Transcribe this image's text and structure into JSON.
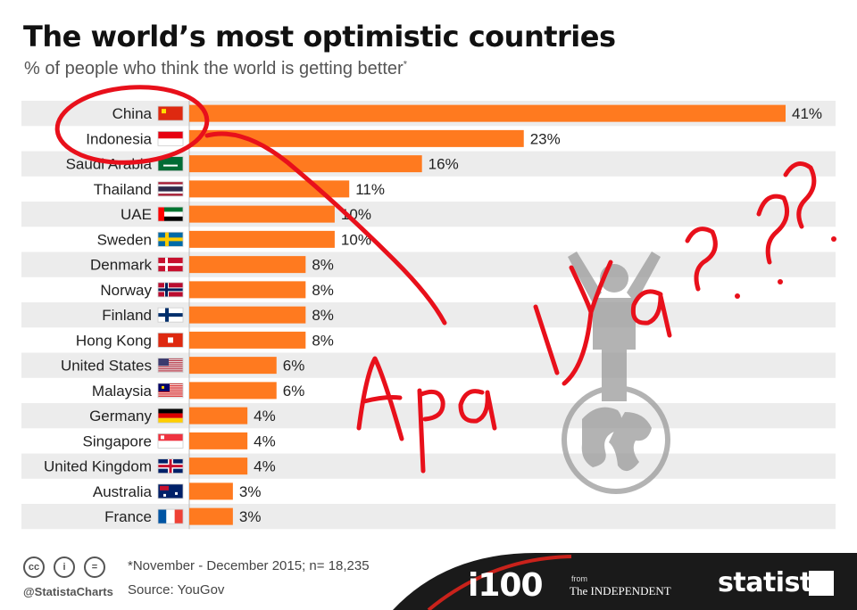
{
  "header": {
    "title": "The world’s most optimistic countries",
    "subtitle": "% of people who think the world is getting better",
    "subtitle_mark": "*"
  },
  "chart_data": {
    "type": "bar",
    "orientation": "horizontal",
    "categories": [
      "China",
      "Indonesia",
      "Saudi Arabia",
      "Thailand",
      "UAE",
      "Sweden",
      "Denmark",
      "Norway",
      "Finland",
      "Hong Kong",
      "United States",
      "Malaysia",
      "Germany",
      "Singapore",
      "United Kingdom",
      "Australia",
      "France"
    ],
    "values": [
      41,
      23,
      16,
      11,
      10,
      10,
      8,
      8,
      8,
      8,
      6,
      6,
      4,
      4,
      4,
      3,
      3
    ],
    "value_labels": [
      "41%",
      "23%",
      "16%",
      "11%",
      "10%",
      "10%",
      "8%",
      "8%",
      "8%",
      "8%",
      "6%",
      "6%",
      "4%",
      "4%",
      "4%",
      "3%",
      "3%"
    ],
    "title": "The world’s most optimistic countries",
    "subtitle": "% of people who think the world is getting better",
    "xlim": [
      0,
      41
    ],
    "bar_color": "#ff7a1f",
    "stripe_color": "#ececec",
    "grid": false,
    "legend": "none"
  },
  "flags": [
    "china-flag-icon",
    "indonesia-flag-icon",
    "saudi-arabia-flag-icon",
    "thailand-flag-icon",
    "uae-flag-icon",
    "sweden-flag-icon",
    "denmark-flag-icon",
    "norway-flag-icon",
    "finland-flag-icon",
    "hong-kong-flag-icon",
    "united-states-flag-icon",
    "malaysia-flag-icon",
    "germany-flag-icon",
    "singapore-flag-icon",
    "united-kingdom-flag-icon",
    "australia-flag-icon",
    "france-flag-icon"
  ],
  "footer": {
    "cc_icons": [
      "cc",
      "i",
      "="
    ],
    "handle": "@StatistaCharts",
    "note": "*November - December 2015; n= 18,235",
    "source": "Source: YouGov",
    "brand_i100": "i100",
    "brand_from": "from",
    "brand_independent": "The INDEPENDENT",
    "brand_statista": "statista"
  },
  "annotation": {
    "handwriting": "Apa iya???",
    "color": "#e8101b"
  }
}
